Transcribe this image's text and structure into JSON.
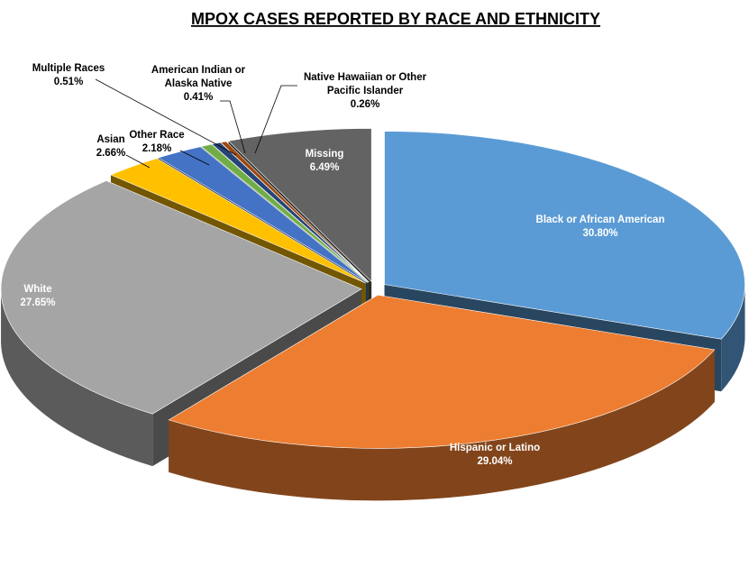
{
  "chart_data": {
    "type": "pie",
    "title": "MPOX CASES REPORTED BY RACE AND ETHNICITY",
    "slices": [
      {
        "label": "Black or African American",
        "value": 30.8,
        "value_label": "30.80%",
        "color": "#5B9BD5"
      },
      {
        "label": "Hispanic or Latino",
        "value": 29.04,
        "value_label": "29.04%",
        "color": "#ED7D31"
      },
      {
        "label": "White",
        "value": 27.65,
        "value_label": "27.65%",
        "color": "#A5A5A5"
      },
      {
        "label": "Asian",
        "value": 2.66,
        "value_label": "2.66%",
        "color": "#FFC000"
      },
      {
        "label": "Other Race",
        "value": 2.18,
        "value_label": "2.18%",
        "color": "#4472C4"
      },
      {
        "label": "Multiple Races",
        "value": 0.51,
        "value_label": "0.51%",
        "color": "#70AD47"
      },
      {
        "label": "American Indian or Alaska Native",
        "value": 0.41,
        "value_label": "0.41%",
        "color": "#264478"
      },
      {
        "label": "Native Hawaiian or Other Pacific Islander",
        "value": 0.26,
        "value_label": "0.26%",
        "color": "#9E480E"
      },
      {
        "label": "Missing",
        "value": 6.49,
        "value_label": "6.49%",
        "color": "#636363"
      }
    ],
    "legend": "none",
    "style": "3d-exploded"
  }
}
